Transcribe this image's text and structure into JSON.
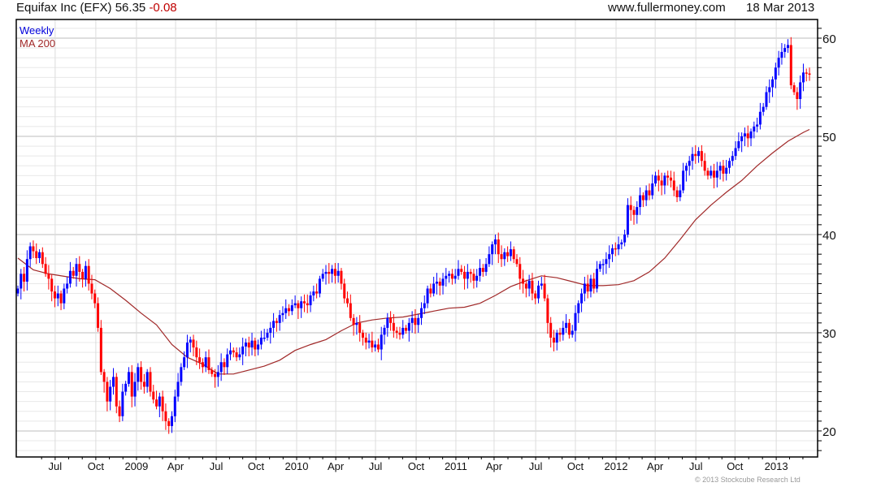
{
  "header": {
    "name": "Equifax Inc (EFX)",
    "price": "56.35",
    "change": "-0.08",
    "site": "www.fullermoney.com",
    "date": "18 Mar 2013"
  },
  "copyright": "© 2013 Stockcube Research Ltd",
  "colors": {
    "up": "#0000ff",
    "down": "#ff0000",
    "ma": "#a02828",
    "change": "#c00000"
  },
  "chart_data": {
    "type": "candlestick",
    "title": "Equifax Inc (EFX) 56.35 -0.08",
    "legend": [
      {
        "label": "Weekly",
        "color": "#0000dd"
      },
      {
        "label": "MA 200",
        "color": "#a02828"
      }
    ],
    "legend_position": "top-left",
    "x_unit": "week index from early Apr 2008",
    "xlim": [
      -0.5,
      258.5
    ],
    "ylim": [
      17.35,
      61.9
    ],
    "grid": true,
    "y_major_ticks": [
      20,
      30,
      40,
      50,
      60
    ],
    "x_ticks": [
      {
        "label": "Jul",
        "week": 12.1
      },
      {
        "label": "Oct",
        "week": 25.3
      },
      {
        "label": "2009",
        "week": 38.5
      },
      {
        "label": "Apr",
        "week": 51.2
      },
      {
        "label": "Jul",
        "week": 64.4
      },
      {
        "label": "Oct",
        "week": 77.3
      },
      {
        "label": "2010",
        "week": 90.5
      },
      {
        "label": "Apr",
        "week": 103.2
      },
      {
        "label": "Jul",
        "week": 116.1
      },
      {
        "label": "Oct",
        "week": 129.3
      },
      {
        "label": "2011",
        "week": 142.2
      },
      {
        "label": "Apr",
        "week": 154.6
      },
      {
        "label": "Jul",
        "week": 168.1
      },
      {
        "label": "Oct",
        "week": 181.0
      },
      {
        "label": "2012",
        "week": 194.2
      },
      {
        "label": "Apr",
        "week": 206.9
      },
      {
        "label": "Jul",
        "week": 220.1
      },
      {
        "label": "Oct",
        "week": 232.8
      },
      {
        "label": "2013",
        "week": 246.2
      }
    ],
    "first_open": 34.0,
    "closes": [
      34.5,
      36.0,
      35.2,
      37.5,
      38.8,
      38.3,
      37.6,
      38.2,
      37.0,
      36.0,
      35.5,
      34.2,
      33.5,
      34.0,
      33.0,
      34.5,
      35.0,
      36.3,
      35.8,
      37.0,
      36.2,
      35.5,
      36.8,
      35.0,
      34.0,
      33.0,
      30.5,
      26.0,
      25.0,
      23.0,
      24.5,
      25.5,
      22.5,
      21.5,
      24.0,
      24.8,
      26.0,
      23.5,
      25.0,
      26.5,
      25.0,
      24.5,
      26.0,
      24.0,
      23.2,
      22.5,
      23.5,
      22.0,
      21.0,
      20.5,
      21.5,
      23.5,
      25.0,
      26.5,
      27.5,
      29.0,
      29.3,
      28.5,
      27.5,
      27.0,
      26.5,
      27.5,
      26.2,
      25.8,
      25.5,
      26.0,
      27.0,
      26.5,
      27.8,
      28.2,
      28.0,
      27.5,
      27.8,
      28.6,
      29.0,
      28.5,
      29.2,
      28.3,
      28.8,
      29.5,
      29.5,
      30.0,
      30.5,
      31.2,
      31.0,
      31.8,
      32.0,
      32.5,
      32.2,
      32.8,
      33.0,
      32.5,
      33.2,
      33.0,
      32.8,
      33.8,
      34.2,
      34.0,
      35.5,
      36.0,
      36.2,
      36.0,
      36.5,
      35.8,
      36.3,
      35.0,
      33.5,
      33.0,
      31.5,
      30.8,
      31.0,
      30.0,
      29.5,
      29.0,
      29.2,
      28.5,
      28.8,
      28.3,
      29.8,
      30.5,
      31.5,
      31.0,
      30.2,
      30.0,
      29.8,
      30.5,
      30.2,
      31.0,
      31.5,
      30.8,
      31.5,
      32.5,
      33.0,
      34.5,
      34.0,
      35.0,
      35.2,
      34.8,
      35.5,
      35.8,
      36.0,
      35.5,
      35.8,
      36.5,
      36.2,
      35.5,
      36.2,
      36.0,
      35.3,
      35.8,
      36.6,
      36.2,
      37.0,
      38.0,
      39.0,
      39.5,
      38.0,
      37.5,
      38.2,
      37.8,
      38.5,
      37.5,
      37.0,
      35.5,
      35.0,
      34.5,
      35.3,
      34.0,
      33.5,
      34.8,
      35.0,
      33.5,
      31.0,
      29.5,
      29.0,
      30.0,
      29.8,
      30.5,
      31.0,
      29.8,
      30.2,
      32.0,
      33.0,
      34.0,
      35.0,
      34.2,
      35.5,
      34.5,
      36.5,
      37.0,
      37.0,
      37.5,
      38.0,
      38.6,
      38.5,
      39.0,
      39.2,
      40.0,
      43.0,
      42.5,
      42.0,
      42.8,
      44.0,
      43.5,
      44.5,
      44.0,
      45.2,
      46.0,
      45.5,
      45.0,
      46.0,
      45.8,
      45.5,
      44.5,
      43.8,
      44.5,
      46.5,
      47.0,
      47.5,
      48.2,
      48.0,
      48.5,
      47.5,
      46.5,
      46.0,
      46.5,
      45.8,
      46.5,
      47.0,
      46.2,
      46.8,
      47.5,
      48.0,
      48.8,
      49.5,
      50.0,
      50.3,
      49.8,
      50.5,
      51.0,
      51.2,
      52.5,
      53.0,
      54.5,
      55.0,
      55.8,
      57.0,
      58.0,
      58.6,
      59.0,
      59.3,
      55.2,
      54.5,
      53.8,
      55.5,
      56.5,
      56.4,
      56.35
    ],
    "ma200": {
      "weeks": [
        0,
        5,
        10,
        20,
        25,
        30,
        35,
        40,
        45,
        50,
        55,
        60,
        65,
        70,
        75,
        80,
        85,
        90,
        95,
        100,
        105,
        110,
        115,
        120,
        125,
        130,
        135,
        140,
        145,
        150,
        155,
        160,
        165,
        170,
        175,
        180,
        185,
        190,
        195,
        200,
        205,
        210,
        215,
        220,
        225,
        230,
        235,
        240,
        245,
        250,
        255,
        257
      ],
      "values": [
        37.6,
        36.4,
        36.0,
        35.5,
        35.4,
        34.5,
        33.3,
        32.0,
        30.8,
        28.8,
        27.5,
        26.8,
        25.8,
        25.8,
        26.2,
        26.6,
        27.2,
        28.2,
        28.8,
        29.3,
        30.2,
        31.0,
        31.3,
        31.5,
        31.6,
        31.9,
        32.2,
        32.5,
        32.6,
        33.0,
        33.8,
        34.7,
        35.3,
        35.8,
        35.6,
        35.2,
        34.8,
        34.8,
        34.9,
        35.3,
        36.2,
        37.6,
        39.5,
        41.5,
        43.0,
        44.3,
        45.5,
        47.0,
        48.3,
        49.5,
        50.4,
        50.7
      ]
    }
  }
}
